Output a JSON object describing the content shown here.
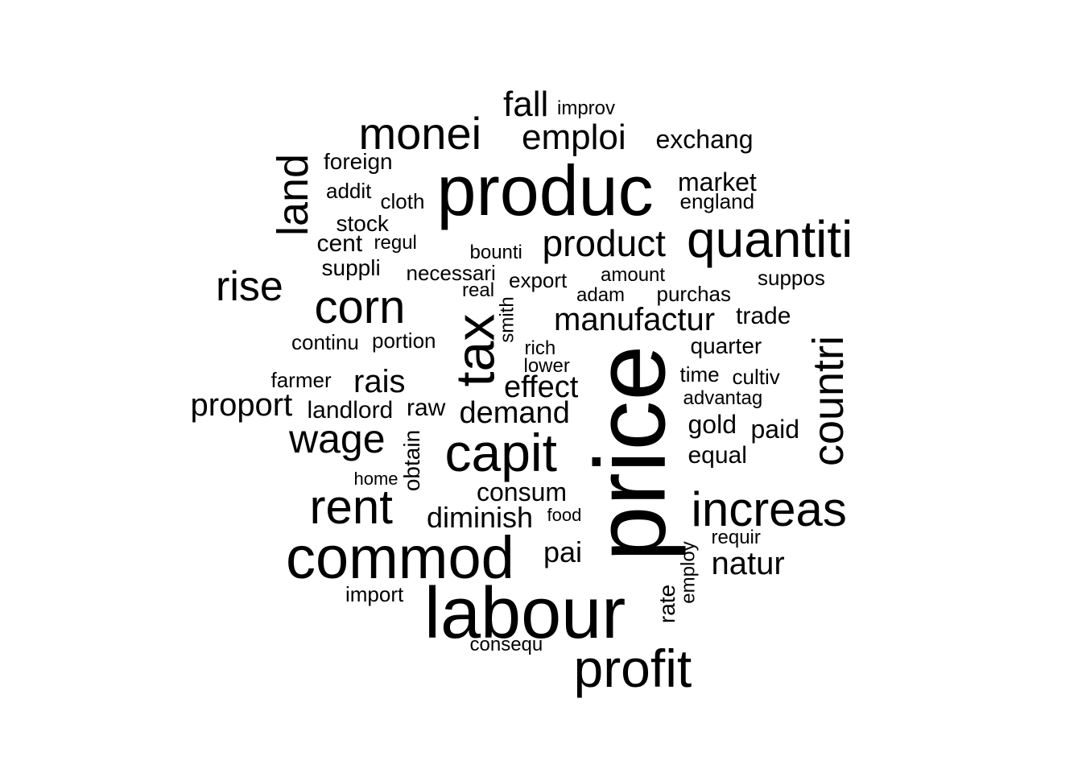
{
  "words": [
    {
      "id": "price",
      "text": "price"
    },
    {
      "id": "labour",
      "text": "labour"
    },
    {
      "id": "produc",
      "text": "produc"
    },
    {
      "id": "commod",
      "text": "commod"
    },
    {
      "id": "capit",
      "text": "capit"
    },
    {
      "id": "profit",
      "text": "profit"
    },
    {
      "id": "increas",
      "text": "increas"
    },
    {
      "id": "quantiti",
      "text": "quantiti"
    },
    {
      "id": "rent",
      "text": "rent"
    },
    {
      "id": "tax",
      "text": "tax"
    },
    {
      "id": "corn",
      "text": "corn"
    },
    {
      "id": "monei",
      "text": "monei"
    },
    {
      "id": "countri",
      "text": "countri"
    },
    {
      "id": "land",
      "text": "land"
    },
    {
      "id": "rise",
      "text": "rise"
    },
    {
      "id": "wage",
      "text": "wage"
    },
    {
      "id": "product",
      "text": "product"
    },
    {
      "id": "emploi",
      "text": "emploi"
    },
    {
      "id": "fall",
      "text": "fall"
    },
    {
      "id": "manufactur",
      "text": "manufactur"
    },
    {
      "id": "natur",
      "text": "natur"
    },
    {
      "id": "proport",
      "text": "proport"
    },
    {
      "id": "rais",
      "text": "rais"
    },
    {
      "id": "demand",
      "text": "demand"
    },
    {
      "id": "effect",
      "text": "effect"
    },
    {
      "id": "diminish",
      "text": "diminish"
    },
    {
      "id": "pai",
      "text": "pai"
    },
    {
      "id": "consum",
      "text": "consum"
    },
    {
      "id": "exchang",
      "text": "exchang"
    },
    {
      "id": "market",
      "text": "market"
    },
    {
      "id": "gold",
      "text": "gold"
    },
    {
      "id": "paid",
      "text": "paid"
    },
    {
      "id": "trade",
      "text": "trade"
    },
    {
      "id": "equal",
      "text": "equal"
    },
    {
      "id": "raw",
      "text": "raw"
    },
    {
      "id": "landlord",
      "text": "landlord"
    },
    {
      "id": "quarter",
      "text": "quarter"
    },
    {
      "id": "stock",
      "text": "stock"
    },
    {
      "id": "foreign",
      "text": "foreign"
    },
    {
      "id": "cent",
      "text": "cent"
    },
    {
      "id": "suppli",
      "text": "suppli"
    },
    {
      "id": "obtain",
      "text": "obtain"
    },
    {
      "id": "rate",
      "text": "rate"
    },
    {
      "id": "portion",
      "text": "portion"
    },
    {
      "id": "cultiv",
      "text": "cultiv"
    },
    {
      "id": "time",
      "text": "time"
    },
    {
      "id": "england",
      "text": "england"
    },
    {
      "id": "necessari",
      "text": "necessari"
    },
    {
      "id": "export",
      "text": "export"
    },
    {
      "id": "purchas",
      "text": "purchas"
    },
    {
      "id": "addit",
      "text": "addit"
    },
    {
      "id": "cloth",
      "text": "cloth"
    },
    {
      "id": "farmer",
      "text": "farmer"
    },
    {
      "id": "import",
      "text": "import"
    },
    {
      "id": "suppos",
      "text": "suppos"
    },
    {
      "id": "smith",
      "text": "smith"
    },
    {
      "id": "employ",
      "text": "employ"
    },
    {
      "id": "continu",
      "text": "continu"
    },
    {
      "id": "regul",
      "text": "regul"
    },
    {
      "id": "amount",
      "text": "amount"
    },
    {
      "id": "real",
      "text": "real"
    },
    {
      "id": "consequ",
      "text": "consequ"
    },
    {
      "id": "requir",
      "text": "requir"
    },
    {
      "id": "improv",
      "text": "improv"
    },
    {
      "id": "adam",
      "text": "adam"
    },
    {
      "id": "rich",
      "text": "rich"
    },
    {
      "id": "advantag",
      "text": "advantag"
    },
    {
      "id": "lower",
      "text": "lower"
    },
    {
      "id": "bounti",
      "text": "bounti"
    },
    {
      "id": "home",
      "text": "home"
    },
    {
      "id": "food",
      "text": "food"
    }
  ]
}
